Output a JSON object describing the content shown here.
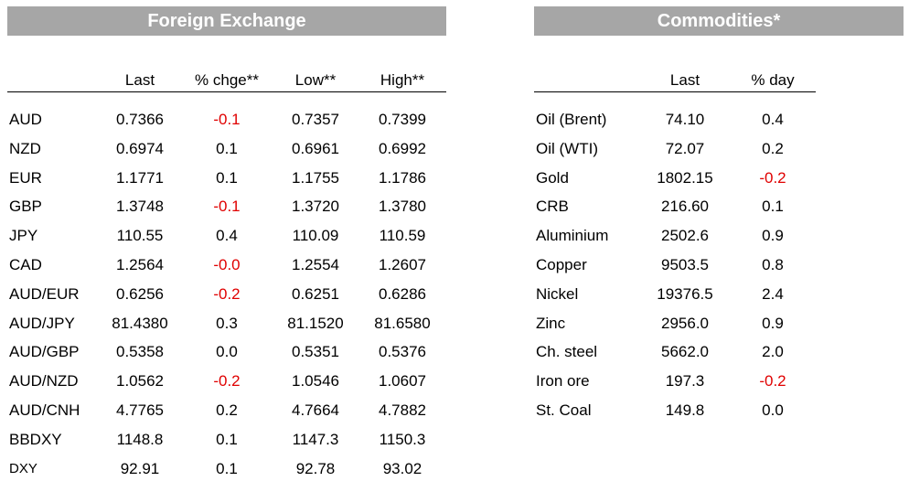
{
  "fx": {
    "title": "Foreign Exchange",
    "headers": [
      "Last",
      "% chge**",
      "Low**",
      "High**"
    ],
    "rows": [
      {
        "name": "AUD",
        "last": "0.7366",
        "chg": "-0.1",
        "low": "0.7357",
        "high": "0.7399"
      },
      {
        "name": "NZD",
        "last": "0.6974",
        "chg": "0.1",
        "low": "0.6961",
        "high": "0.6992"
      },
      {
        "name": "EUR",
        "last": "1.1771",
        "chg": "0.1",
        "low": "1.1755",
        "high": "1.1786"
      },
      {
        "name": "GBP",
        "last": "1.3748",
        "chg": "-0.1",
        "low": "1.3720",
        "high": "1.3780"
      },
      {
        "name": "JPY",
        "last": "110.55",
        "chg": "0.4",
        "low": "110.09",
        "high": "110.59"
      },
      {
        "name": "CAD",
        "last": "1.2564",
        "chg": "-0.0",
        "low": "1.2554",
        "high": "1.2607"
      },
      {
        "name": "AUD/EUR",
        "last": "0.6256",
        "chg": "-0.2",
        "low": "0.6251",
        "high": "0.6286"
      },
      {
        "name": "AUD/JPY",
        "last": "81.4380",
        "chg": "0.3",
        "low": "81.1520",
        "high": "81.6580"
      },
      {
        "name": "AUD/GBP",
        "last": "0.5358",
        "chg": "0.0",
        "low": "0.5351",
        "high": "0.5376"
      },
      {
        "name": "AUD/NZD",
        "last": "1.0562",
        "chg": "-0.2",
        "low": "1.0546",
        "high": "1.0607"
      },
      {
        "name": "AUD/CNH",
        "last": "4.7765",
        "chg": "0.2",
        "low": "4.7664",
        "high": "4.7882"
      },
      {
        "name": "BBDXY",
        "last": "1148.8",
        "chg": "0.1",
        "low": "1147.3",
        "high": "1150.3"
      },
      {
        "name": "DXY",
        "last": "92.91",
        "chg": "0.1",
        "low": "92.78",
        "high": "93.02"
      }
    ]
  },
  "commodities": {
    "title": "Commodities*",
    "headers": [
      "Last",
      "% day"
    ],
    "rows": [
      {
        "name": "Oil (Brent)",
        "last": "74.10",
        "day": "0.4"
      },
      {
        "name": "Oil (WTI)",
        "last": "72.07",
        "day": "0.2"
      },
      {
        "name": "Gold",
        "last": "1802.15",
        "day": "-0.2"
      },
      {
        "name": "CRB",
        "last": "216.60",
        "day": "0.1"
      },
      {
        "name": "Aluminium",
        "last": "2502.6",
        "day": "0.9"
      },
      {
        "name": "Copper",
        "last": "9503.5",
        "day": "0.8"
      },
      {
        "name": "Nickel",
        "last": "19376.5",
        "day": "2.4"
      },
      {
        "name": "Zinc",
        "last": "2956.0",
        "day": "0.9"
      },
      {
        "name": "Ch. steel",
        "last": "5662.0",
        "day": "2.0"
      },
      {
        "name": "Iron ore",
        "last": "197.3",
        "day": "-0.2"
      },
      {
        "name": "St. Coal",
        "last": "149.8",
        "day": "0.0"
      }
    ]
  },
  "colors": {
    "banner": "#a6a6a6",
    "negative": "#e00000"
  }
}
